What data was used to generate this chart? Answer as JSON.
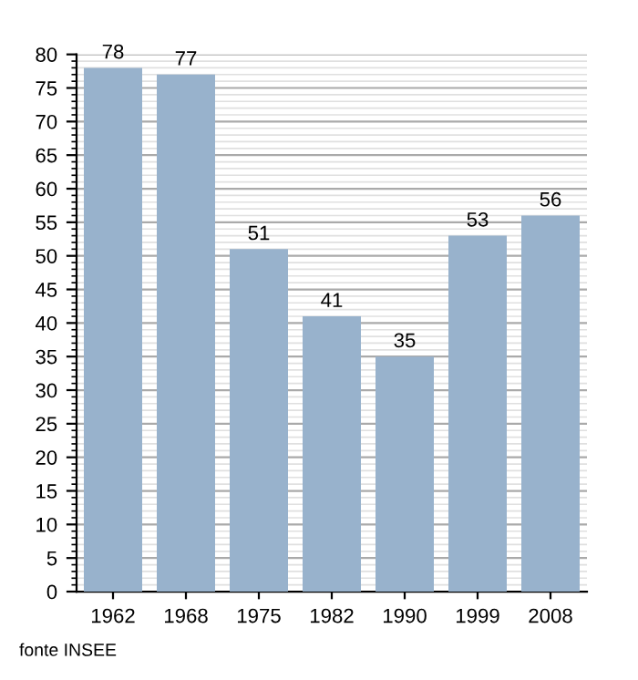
{
  "chart_data": {
    "type": "bar",
    "categories": [
      "1962",
      "1968",
      "1975",
      "1982",
      "1990",
      "1999",
      "2008"
    ],
    "values": [
      78,
      77,
      51,
      41,
      35,
      53,
      56
    ],
    "color": "#98b2cc",
    "ylim": [
      0,
      80
    ],
    "yticks": [
      0,
      5,
      10,
      15,
      20,
      25,
      30,
      35,
      40,
      45,
      50,
      55,
      60,
      65,
      70,
      75,
      80
    ],
    "grid": "y",
    "data_labels": true,
    "annotations": [
      "fonte INSEE"
    ]
  }
}
